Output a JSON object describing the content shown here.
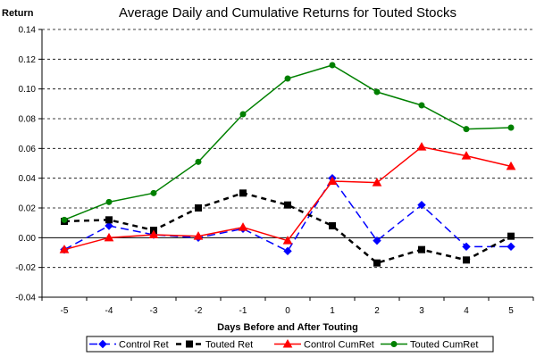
{
  "chart_data": {
    "type": "line",
    "title": "Average Daily and Cumulative Returns for Touted Stocks",
    "xlabel": "Days Before and After Touting",
    "ylabel": "Return",
    "x": [
      -5,
      -4,
      -3,
      -2,
      -1,
      0,
      1,
      2,
      3,
      4,
      5
    ],
    "x_tick_labels": [
      "-5",
      "-4",
      "-3",
      "-2",
      "-1",
      "0",
      "1",
      "2",
      "3",
      "4",
      "5"
    ],
    "ylim": [
      -0.04,
      0.14
    ],
    "y_ticks": [
      -0.04,
      -0.02,
      0.0,
      0.02,
      0.04,
      0.06,
      0.08,
      0.1,
      0.12,
      0.14
    ],
    "y_tick_labels": [
      "-0.04",
      "-0.02",
      "0.00",
      "0.02",
      "0.04",
      "0.06",
      "0.08",
      "0.10",
      "0.12",
      "0.14"
    ],
    "grid": "horizontal dashed",
    "legend_position": "bottom",
    "series": [
      {
        "name": "Control Ret",
        "color": "#0000ff",
        "marker": "diamond",
        "line_style": "dashed",
        "values": [
          -0.008,
          0.008,
          0.002,
          0.0,
          0.006,
          -0.009,
          0.04,
          -0.002,
          0.022,
          -0.006,
          -0.006
        ]
      },
      {
        "name": "Touted Ret",
        "color": "#000000",
        "marker": "square",
        "line_style": "dashed",
        "values": [
          0.011,
          0.012,
          0.005,
          0.02,
          0.03,
          0.022,
          0.008,
          -0.017,
          -0.008,
          -0.015,
          0.001
        ]
      },
      {
        "name": "Control CumRet",
        "color": "#ff0000",
        "marker": "triangle",
        "line_style": "solid",
        "values": [
          -0.008,
          0.0,
          0.002,
          0.001,
          0.007,
          -0.002,
          0.038,
          0.037,
          0.061,
          0.055,
          0.048
        ]
      },
      {
        "name": "Touted CumRet",
        "color": "#008000",
        "marker": "circle",
        "line_style": "solid",
        "values": [
          0.012,
          0.024,
          0.03,
          0.051,
          0.083,
          0.107,
          0.116,
          0.098,
          0.089,
          0.073,
          0.074
        ]
      }
    ]
  }
}
